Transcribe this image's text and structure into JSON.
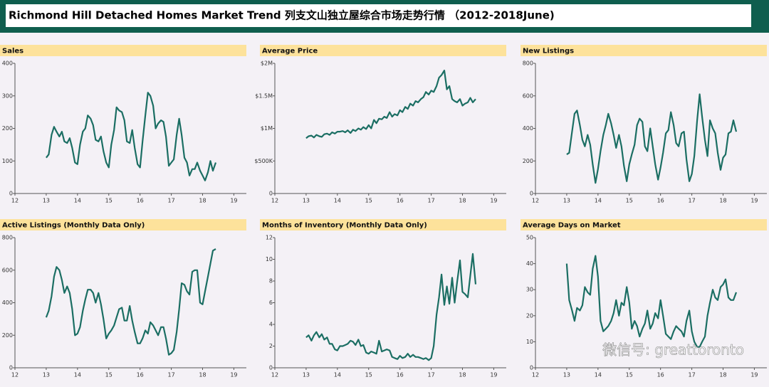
{
  "title": "Richmond Hill Detached Homes Market Trend 列支文山独立屋综合市场走势行情 （2012-2018June)",
  "watermark": "微信号: greattoronto",
  "chart_data": [
    {
      "type": "line",
      "title": "Sales",
      "color": "#1b6e63",
      "x": [
        13,
        13.08,
        13.17,
        13.25,
        13.33,
        13.42,
        13.5,
        13.58,
        13.67,
        13.75,
        13.83,
        13.92,
        14,
        14.08,
        14.17,
        14.25,
        14.33,
        14.42,
        14.5,
        14.58,
        14.67,
        14.75,
        14.83,
        14.92,
        15,
        15.08,
        15.17,
        15.25,
        15.33,
        15.42,
        15.5,
        15.58,
        15.67,
        15.75,
        15.83,
        15.92,
        16,
        16.08,
        16.17,
        16.25,
        16.33,
        16.42,
        16.5,
        16.58,
        16.67,
        16.75,
        16.83,
        16.92,
        17,
        17.08,
        17.17,
        17.25,
        17.33,
        17.42,
        17.5,
        17.58,
        17.67,
        17.75,
        17.83,
        17.92,
        18,
        18.08,
        18.17,
        18.25,
        18.33,
        18.42
      ],
      "values": [
        110,
        120,
        180,
        205,
        190,
        175,
        190,
        160,
        155,
        170,
        140,
        95,
        90,
        150,
        190,
        200,
        240,
        230,
        210,
        165,
        160,
        175,
        130,
        95,
        80,
        150,
        195,
        265,
        255,
        250,
        225,
        160,
        155,
        195,
        140,
        90,
        80,
        160,
        240,
        310,
        300,
        270,
        200,
        215,
        225,
        220,
        175,
        85,
        95,
        105,
        180,
        230,
        180,
        110,
        95,
        55,
        75,
        75,
        95,
        70,
        55,
        40,
        65,
        100,
        70,
        95
      ],
      "xlim": [
        12,
        19.4
      ],
      "xticks": [
        12,
        13,
        14,
        15,
        16,
        17,
        18,
        19
      ],
      "ylim": [
        0,
        400
      ],
      "yticks": [
        0,
        100,
        200,
        300,
        400
      ]
    },
    {
      "type": "line",
      "title": "Average Price",
      "color": "#1b6e63",
      "x": [
        13,
        13.08,
        13.17,
        13.25,
        13.33,
        13.42,
        13.5,
        13.58,
        13.67,
        13.75,
        13.83,
        13.92,
        14,
        14.08,
        14.17,
        14.25,
        14.33,
        14.42,
        14.5,
        14.58,
        14.67,
        14.75,
        14.83,
        14.92,
        15,
        15.08,
        15.17,
        15.25,
        15.33,
        15.42,
        15.5,
        15.58,
        15.67,
        15.75,
        15.83,
        15.92,
        16,
        16.08,
        16.17,
        16.25,
        16.33,
        16.42,
        16.5,
        16.58,
        16.67,
        16.75,
        16.83,
        16.92,
        17,
        17.08,
        17.17,
        17.25,
        17.33,
        17.42,
        17.5,
        17.58,
        17.67,
        17.75,
        17.83,
        17.92,
        18,
        18.08,
        18.17,
        18.25,
        18.33,
        18.42
      ],
      "values": [
        850000,
        880000,
        890000,
        860000,
        900000,
        880000,
        870000,
        910000,
        920000,
        900000,
        940000,
        920000,
        950000,
        950000,
        960000,
        940000,
        970000,
        930000,
        980000,
        960000,
        1000000,
        980000,
        1020000,
        990000,
        1050000,
        1000000,
        1130000,
        1080000,
        1150000,
        1140000,
        1180000,
        1160000,
        1250000,
        1180000,
        1220000,
        1200000,
        1280000,
        1250000,
        1330000,
        1300000,
        1380000,
        1350000,
        1420000,
        1400000,
        1450000,
        1480000,
        1560000,
        1520000,
        1580000,
        1560000,
        1650000,
        1780000,
        1820000,
        1890000,
        1600000,
        1650000,
        1450000,
        1420000,
        1400000,
        1450000,
        1350000,
        1380000,
        1400000,
        1470000,
        1400000,
        1450000
      ],
      "xlim": [
        12,
        19.4
      ],
      "xticks": [
        12,
        13,
        14,
        15,
        16,
        17,
        18,
        19
      ],
      "ylim": [
        0,
        2000000
      ],
      "yticks": [
        0,
        {
          "value": 500000,
          "label": "$500K"
        },
        {
          "value": 1000000,
          "label": "$1M"
        },
        {
          "value": 1500000,
          "label": "$1.5M"
        },
        {
          "value": 2000000,
          "label": "$2M"
        }
      ]
    },
    {
      "type": "line",
      "title": "New Listings",
      "color": "#1b6e63",
      "x": [
        13,
        13.08,
        13.17,
        13.25,
        13.33,
        13.42,
        13.5,
        13.58,
        13.67,
        13.75,
        13.83,
        13.92,
        14,
        14.08,
        14.17,
        14.25,
        14.33,
        14.42,
        14.5,
        14.58,
        14.67,
        14.75,
        14.83,
        14.92,
        15,
        15.08,
        15.17,
        15.25,
        15.33,
        15.42,
        15.5,
        15.58,
        15.67,
        15.75,
        15.83,
        15.92,
        16,
        16.08,
        16.17,
        16.25,
        16.33,
        16.42,
        16.5,
        16.58,
        16.67,
        16.75,
        16.83,
        16.92,
        17,
        17.08,
        17.17,
        17.25,
        17.33,
        17.42,
        17.5,
        17.58,
        17.67,
        17.75,
        17.83,
        17.92,
        18,
        18.08,
        18.17,
        18.25,
        18.33,
        18.42
      ],
      "values": [
        240,
        250,
        380,
        490,
        510,
        420,
        330,
        290,
        360,
        300,
        180,
        65,
        150,
        260,
        360,
        420,
        490,
        430,
        360,
        280,
        360,
        290,
        170,
        75,
        180,
        240,
        300,
        420,
        460,
        440,
        290,
        260,
        400,
        290,
        180,
        85,
        160,
        250,
        370,
        390,
        500,
        420,
        310,
        290,
        370,
        380,
        210,
        75,
        120,
        230,
        450,
        610,
        470,
        330,
        230,
        450,
        400,
        370,
        250,
        145,
        220,
        240,
        370,
        380,
        450,
        380
      ],
      "xlim": [
        12,
        19.4
      ],
      "xticks": [
        12,
        13,
        14,
        15,
        16,
        17,
        18,
        19
      ],
      "ylim": [
        0,
        800
      ],
      "yticks": [
        0,
        200,
        400,
        600,
        800
      ]
    },
    {
      "type": "line",
      "title": "Active Listings (Monthly Data Only)",
      "color": "#1b6e63",
      "x": [
        13,
        13.08,
        13.17,
        13.25,
        13.33,
        13.42,
        13.5,
        13.58,
        13.67,
        13.75,
        13.83,
        13.92,
        14,
        14.08,
        14.17,
        14.25,
        14.33,
        14.42,
        14.5,
        14.58,
        14.67,
        14.75,
        14.83,
        14.92,
        15,
        15.08,
        15.17,
        15.25,
        15.33,
        15.42,
        15.5,
        15.58,
        15.67,
        15.75,
        15.83,
        15.92,
        16,
        16.08,
        16.17,
        16.25,
        16.33,
        16.42,
        16.5,
        16.58,
        16.67,
        16.75,
        16.83,
        16.92,
        17,
        17.08,
        17.17,
        17.25,
        17.33,
        17.42,
        17.5,
        17.58,
        17.67,
        17.75,
        17.83,
        17.92,
        18,
        18.08,
        18.17,
        18.25,
        18.33,
        18.42
      ],
      "values": [
        310,
        350,
        440,
        560,
        620,
        600,
        540,
        460,
        500,
        460,
        360,
        200,
        210,
        250,
        350,
        420,
        480,
        480,
        460,
        400,
        460,
        390,
        300,
        180,
        210,
        230,
        260,
        310,
        360,
        370,
        290,
        290,
        380,
        290,
        220,
        150,
        150,
        180,
        230,
        210,
        280,
        260,
        230,
        200,
        250,
        250,
        180,
        80,
        90,
        110,
        220,
        360,
        520,
        510,
        470,
        450,
        590,
        600,
        600,
        400,
        390,
        470,
        560,
        640,
        720,
        730
      ],
      "xlim": [
        12,
        19.4
      ],
      "xticks": [
        12,
        13,
        14,
        15,
        16,
        17,
        18,
        19
      ],
      "ylim": [
        0,
        800
      ],
      "yticks": [
        0,
        200,
        400,
        600,
        800
      ]
    },
    {
      "type": "line",
      "title": "Months of Inventory (Monthly Data Only)",
      "color": "#1b6e63",
      "x": [
        13,
        13.08,
        13.17,
        13.25,
        13.33,
        13.42,
        13.5,
        13.58,
        13.67,
        13.75,
        13.83,
        13.92,
        14,
        14.08,
        14.17,
        14.25,
        14.33,
        14.42,
        14.5,
        14.58,
        14.67,
        14.75,
        14.83,
        14.92,
        15,
        15.08,
        15.17,
        15.25,
        15.33,
        15.42,
        15.5,
        15.58,
        15.67,
        15.75,
        15.83,
        15.92,
        16,
        16.08,
        16.17,
        16.25,
        16.33,
        16.42,
        16.5,
        16.58,
        16.67,
        16.75,
        16.83,
        16.92,
        17,
        17.08,
        17.17,
        17.25,
        17.33,
        17.42,
        17.5,
        17.58,
        17.67,
        17.75,
        17.83,
        17.92,
        18,
        18.08,
        18.17,
        18.25,
        18.33,
        18.42
      ],
      "values": [
        2.8,
        3.0,
        2.5,
        3.0,
        3.3,
        2.8,
        3.1,
        2.6,
        2.8,
        2.2,
        2.2,
        1.7,
        1.6,
        2.0,
        2.0,
        2.1,
        2.2,
        2.5,
        2.4,
        2.1,
        2.6,
        2.0,
        2.1,
        1.4,
        1.3,
        1.5,
        1.4,
        1.3,
        2.5,
        1.5,
        1.6,
        1.7,
        1.6,
        1.0,
        0.9,
        0.8,
        1.1,
        0.9,
        1.0,
        1.3,
        1.0,
        1.2,
        1.0,
        1.0,
        0.9,
        0.8,
        0.9,
        0.7,
        0.9,
        2.0,
        4.9,
        6.5,
        8.6,
        5.8,
        7.5,
        5.9,
        8.3,
        6.0,
        7.9,
        9.9,
        7.0,
        6.8,
        6.5,
        8.5,
        10.5,
        7.7
      ],
      "xlim": [
        12,
        19.4
      ],
      "xticks": [
        12,
        13,
        14,
        15,
        16,
        17,
        18,
        19
      ],
      "ylim": [
        0,
        12
      ],
      "yticks": [
        0,
        2,
        4,
        6,
        8,
        10,
        12
      ]
    },
    {
      "type": "line",
      "title": "Average Days on Market",
      "color": "#1b6e63",
      "x": [
        13,
        13.08,
        13.17,
        13.25,
        13.33,
        13.42,
        13.5,
        13.58,
        13.67,
        13.75,
        13.83,
        13.92,
        14,
        14.08,
        14.17,
        14.25,
        14.33,
        14.42,
        14.5,
        14.58,
        14.67,
        14.75,
        14.83,
        14.92,
        15,
        15.08,
        15.17,
        15.25,
        15.33,
        15.42,
        15.5,
        15.58,
        15.67,
        15.75,
        15.83,
        15.92,
        16,
        16.08,
        16.17,
        16.25,
        16.33,
        16.42,
        16.5,
        16.58,
        16.67,
        16.75,
        16.83,
        16.92,
        17,
        17.08,
        17.17,
        17.25,
        17.33,
        17.42,
        17.5,
        17.58,
        17.67,
        17.75,
        17.83,
        17.92,
        18,
        18.08,
        18.17,
        18.25,
        18.33,
        18.42
      ],
      "values": [
        40,
        26,
        22,
        18,
        23,
        22,
        24,
        31,
        29,
        28,
        38,
        43,
        35,
        18,
        14,
        15,
        16,
        18,
        21,
        26,
        20,
        25,
        24,
        31,
        25,
        15,
        18,
        16,
        12,
        15,
        17,
        22,
        15,
        17,
        21,
        19,
        26,
        20,
        13,
        12,
        11,
        14,
        16,
        15,
        14,
        12,
        18,
        22,
        14,
        10,
        8,
        8,
        10,
        12,
        20,
        25,
        30,
        27,
        26,
        31,
        32,
        34,
        27,
        26,
        26,
        29
      ],
      "xlim": [
        12,
        19.4
      ],
      "xticks": [
        12,
        13,
        14,
        15,
        16,
        17,
        18,
        19
      ],
      "ylim": [
        0,
        50
      ],
      "yticks": [
        0,
        10,
        20,
        30,
        40,
        50
      ]
    }
  ]
}
